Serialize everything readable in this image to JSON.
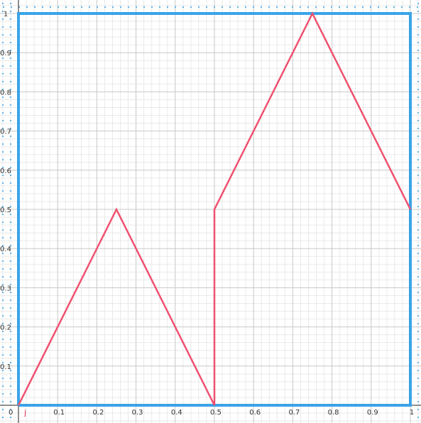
{
  "chart_data": {
    "type": "line",
    "title": "",
    "xlabel": "",
    "ylabel": "",
    "xlim": [
      0,
      1
    ],
    "ylim": [
      0,
      1
    ],
    "grid": true,
    "origin_label": "0",
    "x_ticks": [
      "0.1",
      "0.2",
      "0.3",
      "0.4",
      "0.5",
      "0.6",
      "0.7",
      "0.8",
      "0.9",
      "1"
    ],
    "y_ticks": [
      "0.1",
      "0.2",
      "0.3",
      "0.4",
      "0.5",
      "0.6",
      "0.7",
      "0.8",
      "0.9",
      "1"
    ],
    "function_label": "j",
    "series": [
      {
        "color": "#f0506e",
        "x": [
          0,
          0.25,
          0.5,
          0.5,
          0.75,
          1
        ],
        "y": [
          0,
          0.5,
          0,
          0.5,
          1,
          0.5
        ]
      }
    ],
    "box": {
      "color": "#3aa3e8",
      "x": [
        0,
        1,
        1,
        0,
        0
      ],
      "y": [
        0,
        0,
        1,
        1,
        0
      ]
    },
    "colors": {
      "grid_major": "#c8c8c8",
      "grid_minor": "#e9e9e9",
      "dots": "#6ab7e6",
      "axis": "#222222",
      "function_label": "#e0304e"
    }
  }
}
